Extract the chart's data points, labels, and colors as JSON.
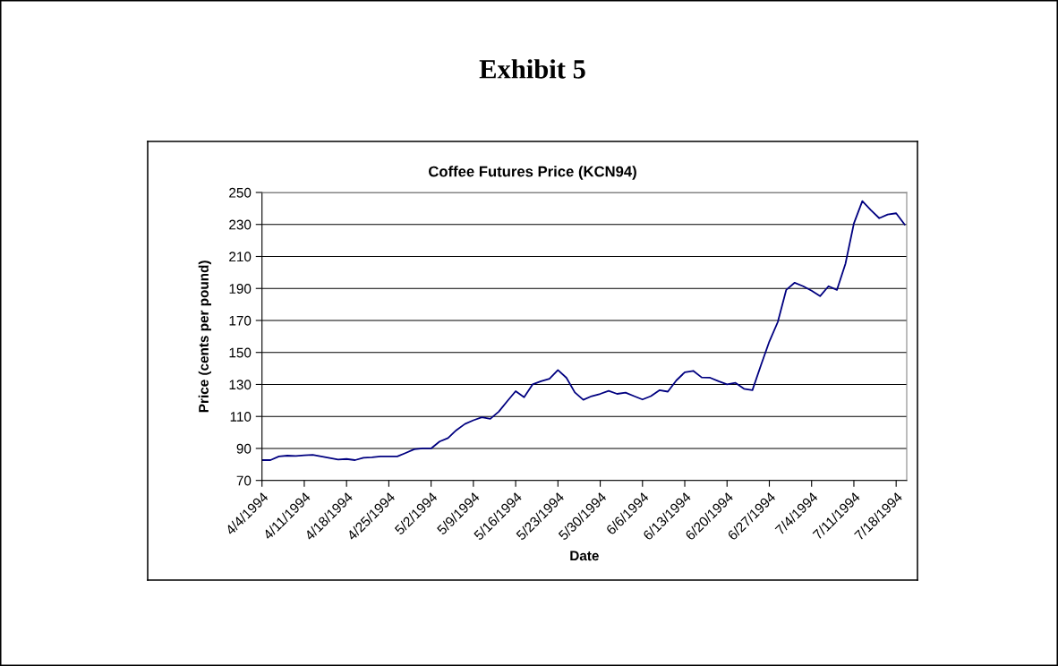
{
  "chart_data": {
    "type": "line",
    "title": "Exhibit 5",
    "subtitle": "Coffee Futures Price (KCN94)",
    "xlabel": "Date",
    "ylabel": "Price (cents per pound)",
    "categories": [
      "4/4/1994",
      null,
      null,
      null,
      null,
      "4/11/1994",
      null,
      null,
      null,
      null,
      "4/18/1994",
      null,
      null,
      null,
      null,
      "4/25/1994",
      null,
      null,
      null,
      null,
      "5/2/1994",
      null,
      null,
      null,
      null,
      "5/9/1994",
      null,
      null,
      null,
      null,
      "5/16/1994",
      null,
      null,
      null,
      null,
      "5/23/1994",
      null,
      null,
      null,
      null,
      "5/30/1994",
      null,
      null,
      null,
      null,
      "6/6/1994",
      null,
      null,
      null,
      null,
      "6/13/1994",
      null,
      null,
      null,
      null,
      "6/20/1994",
      null,
      null,
      null,
      null,
      "6/27/1994",
      null,
      null,
      null,
      null,
      "7/4/1994",
      null,
      null,
      null,
      null,
      "7/11/1994",
      null,
      null,
      null,
      null,
      "7/18/1994",
      null
    ],
    "series": [
      {
        "color": "#000080",
        "values": [
          82.7,
          82.7,
          85,
          85.5,
          85.3,
          85.7,
          86,
          85,
          84,
          83,
          83.4,
          82.7,
          84.2,
          84.5,
          85,
          85,
          85,
          87.2,
          89.5,
          90,
          90,
          94.3,
          96.5,
          101.5,
          105.3,
          107.6,
          109.5,
          108.5,
          113,
          119.5,
          125.8,
          122,
          130,
          132,
          133.5,
          139,
          134.2,
          125,
          120.4,
          122.7,
          124.1,
          126,
          124.1,
          124.9,
          122.7,
          120.6,
          122.7,
          126.4,
          125.5,
          132.5,
          137.6,
          138.5,
          134.4,
          134.2,
          132,
          130.1,
          131,
          127.3,
          126.4,
          141.9,
          156.8,
          169,
          189.1,
          193.6,
          191.4,
          188.6,
          185.2,
          191.4,
          189.1,
          205.4,
          230.6,
          244.6,
          239,
          233.9,
          236.2,
          237,
          230
        ]
      }
    ],
    "ylim": [
      70,
      250
    ],
    "yticks": [
      70,
      90,
      110,
      130,
      150,
      170,
      190,
      210,
      230,
      250
    ],
    "grid": "y",
    "legend": false,
    "marker": "none",
    "line_style": "solid"
  }
}
